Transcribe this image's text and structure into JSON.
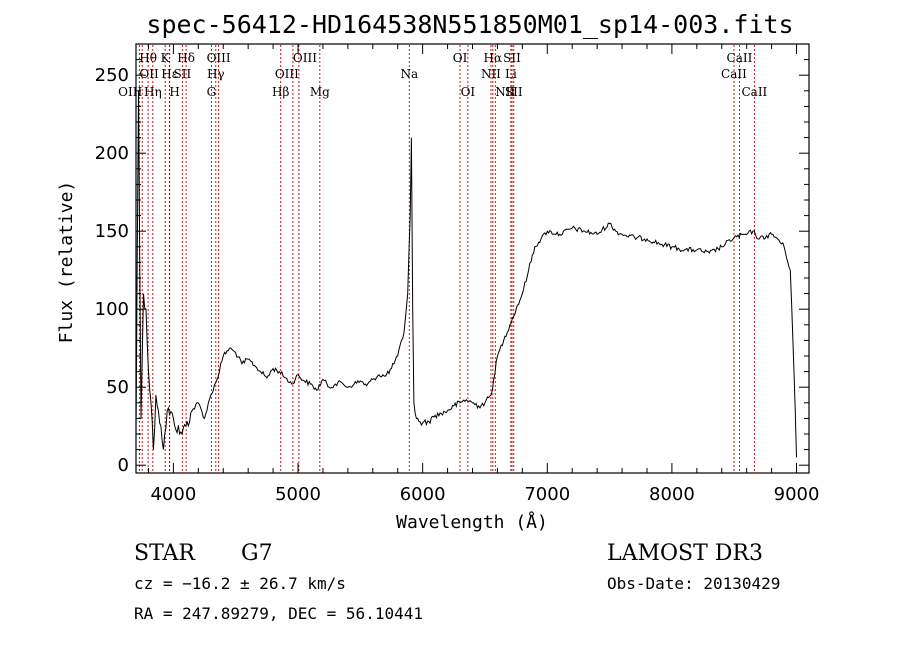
{
  "chart_data": {
    "type": "line",
    "title": "spec-56412-HD164538N551850M01_sp14-003.fits",
    "xlabel": "Wavelength (Å)",
    "ylabel": "Flux (relative)",
    "xlim": [
      3700,
      9100
    ],
    "ylim": [
      -5,
      270
    ],
    "xticks": [
      4000,
      5000,
      6000,
      7000,
      8000,
      9000
    ],
    "yticks": [
      0,
      50,
      100,
      150,
      200,
      250
    ],
    "series": [
      {
        "name": "spectrum",
        "x": [
          3700,
          3720,
          3740,
          3760,
          3780,
          3800,
          3820,
          3840,
          3860,
          3880,
          3900,
          3920,
          3950,
          4000,
          4050,
          4100,
          4150,
          4200,
          4250,
          4300,
          4350,
          4400,
          4450,
          4500,
          4550,
          4600,
          4650,
          4700,
          4750,
          4800,
          4850,
          4900,
          4950,
          5000,
          5050,
          5100,
          5150,
          5200,
          5250,
          5300,
          5350,
          5400,
          5450,
          5500,
          5550,
          5600,
          5650,
          5700,
          5750,
          5800,
          5850,
          5880,
          5900,
          5910,
          5920,
          5930,
          5940,
          5950,
          5970,
          6000,
          6050,
          6100,
          6150,
          6200,
          6250,
          6300,
          6350,
          6400,
          6450,
          6500,
          6550,
          6570,
          6600,
          6650,
          6700,
          6750,
          6800,
          6850,
          6900,
          6950,
          7000,
          7100,
          7200,
          7300,
          7400,
          7500,
          7550,
          7600,
          7700,
          7800,
          7900,
          8000,
          8100,
          8200,
          8300,
          8400,
          8500,
          8600,
          8650,
          8700,
          8800,
          8850,
          8900,
          8950,
          8980,
          9000
        ],
        "y": [
          20,
          240,
          30,
          110,
          100,
          60,
          40,
          10,
          45,
          35,
          25,
          10,
          35,
          30,
          20,
          25,
          35,
          40,
          30,
          45,
          55,
          70,
          75,
          72,
          65,
          68,
          64,
          60,
          56,
          62,
          60,
          56,
          52,
          58,
          54,
          52,
          48,
          55,
          50,
          52,
          53,
          50,
          52,
          54,
          51,
          55,
          58,
          57,
          62,
          70,
          85,
          110,
          160,
          210,
          100,
          40,
          33,
          30,
          28,
          27,
          28,
          32,
          33,
          35,
          38,
          40,
          42,
          40,
          38,
          40,
          45,
          55,
          70,
          80,
          90,
          100,
          110,
          125,
          140,
          145,
          150,
          148,
          152,
          150,
          148,
          155,
          150,
          148,
          146,
          145,
          142,
          140,
          138,
          138,
          136,
          140,
          146,
          148,
          150,
          145,
          148,
          145,
          140,
          125,
          60,
          5
        ],
        "color": "#000000"
      }
    ],
    "lines": [
      {
        "name": "Hθ",
        "x": 3797,
        "row": 0,
        "align": "middle"
      },
      {
        "name": "OII",
        "x": 3727,
        "row": 1,
        "align": "start"
      },
      {
        "name": "OIII",
        "x": 3750,
        "row": 2,
        "align": "end"
      },
      {
        "name": "K",
        "x": 3934,
        "row": 0,
        "align": "middle"
      },
      {
        "name": "Hε",
        "x": 3970,
        "row": 1,
        "align": "middle"
      },
      {
        "name": "Hη",
        "x": 3835,
        "row": 2,
        "align": "middle"
      },
      {
        "name": "H",
        "x": 3968,
        "row": 2,
        "align": "start"
      },
      {
        "name": "Hδ",
        "x": 4102,
        "row": 0,
        "align": "middle"
      },
      {
        "name": "SII",
        "x": 4072,
        "row": 1,
        "align": "middle"
      },
      {
        "name": "OIII",
        "x": 4363,
        "row": 0,
        "align": "middle"
      },
      {
        "name": "Hγ",
        "x": 4340,
        "row": 1,
        "align": "middle"
      },
      {
        "name": "G",
        "x": 4305,
        "row": 2,
        "align": "middle"
      },
      {
        "name": "OIII",
        "x": 4959,
        "row": 0,
        "align": "start"
      },
      {
        "name": "OIII",
        "x": 5007,
        "row": 1,
        "align": "end"
      },
      {
        "name": "Hβ",
        "x": 4861,
        "row": 2,
        "align": "middle"
      },
      {
        "name": "Mg",
        "x": 5175,
        "row": 2,
        "align": "middle"
      },
      {
        "name": "Na",
        "x": 5893,
        "row": 1,
        "align": "middle"
      },
      {
        "name": "OI",
        "x": 6300,
        "row": 0,
        "align": "middle"
      },
      {
        "name": "OI",
        "x": 6363,
        "row": 2,
        "align": "middle"
      },
      {
        "name": "Hα",
        "x": 6563,
        "row": 0,
        "align": "middle"
      },
      {
        "name": "NII",
        "x": 6548,
        "row": 1,
        "align": "middle"
      },
      {
        "name": "NII",
        "x": 6583,
        "row": 2,
        "align": "start"
      },
      {
        "name": "SII",
        "x": 6717,
        "row": 0,
        "align": "middle"
      },
      {
        "name": "Li",
        "x": 6708,
        "row": 1,
        "align": "middle"
      },
      {
        "name": "SII",
        "x": 6731,
        "row": 2,
        "align": "middle"
      },
      {
        "name": "CaII",
        "x": 8542,
        "row": 0,
        "align": "middle"
      },
      {
        "name": "CaII",
        "x": 8498,
        "row": 1,
        "align": "middle"
      },
      {
        "name": "CaII",
        "x": 8662,
        "row": 2,
        "align": "middle"
      }
    ],
    "line_color": "#c00000"
  },
  "info": {
    "object_type": "STAR",
    "subclass": "G7",
    "survey": "LAMOST DR3",
    "redshift": "cz = −16.2 ± 26.7 km/s",
    "obs_date": "Obs-Date: 20130429",
    "coords": "RA = 247.89279, DEC =  56.10441"
  }
}
